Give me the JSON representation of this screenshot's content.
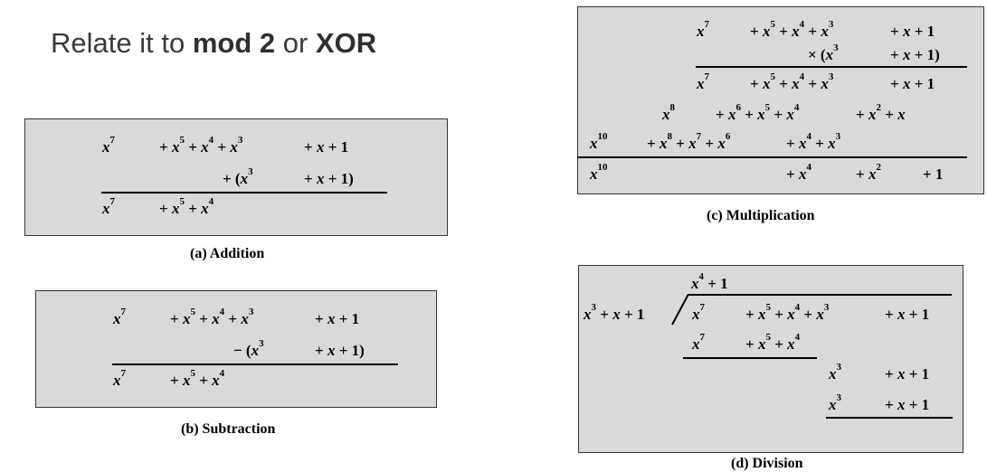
{
  "heading": {
    "prefix": "Relate it to ",
    "term1": "mod 2",
    "middle": " or ",
    "term2": "XOR"
  },
  "addition": {
    "caption": "(a) Addition",
    "row1": {
      "a": "x7",
      "b": "+ x5 + x4 + x3",
      "c": "+ x + 1"
    },
    "row2": {
      "b": "+ (x3",
      "c": "+ x + 1)"
    },
    "result": {
      "a": "x7",
      "b": "+ x5 + x4"
    }
  },
  "subtraction": {
    "caption": "(b) Subtraction",
    "row1": {
      "a": "x7",
      "b": "+ x5 + x4 + x3",
      "c": "+ x + 1"
    },
    "row2": {
      "b": "− (x3",
      "c": "+ x + 1)"
    },
    "result": {
      "a": "x7",
      "b": "+ x5 + x4"
    }
  },
  "multiplication": {
    "caption": "(c) Multiplication",
    "row1": {
      "a": "x7",
      "b": "+ x5 + x4 + x3",
      "c": "+ x + 1"
    },
    "row2": {
      "b": "× (x3",
      "c": "+ x + 1)"
    },
    "partial1": {
      "a": "x7",
      "b": "+ x5 + x4 + x3",
      "c": "+ x + 1"
    },
    "partial2": {
      "a": "x8",
      "b": "+ x6 + x5 + x4",
      "c": "+ x2 + x"
    },
    "partial3": {
      "a": "x10",
      "b": "+ x8 + x7 + x6",
      "c": "+ x4 + x3"
    },
    "result": {
      "a": "x10",
      "b": "+ x4",
      "c": "+ x2",
      "d": "+ 1"
    }
  },
  "division": {
    "caption": "(d) Division",
    "quotient": "x4 + 1",
    "divisor": "x3 + x + 1",
    "dividend": {
      "a": "x7",
      "b": "+ x5 + x4 + x3",
      "c": "+ x + 1"
    },
    "sub1": {
      "a": "x7",
      "b": "+ x5 + x4"
    },
    "rem1": {
      "a": "x3",
      "c": "+ x + 1"
    },
    "sub2": {
      "a": "x3",
      "c": "+ x + 1"
    }
  }
}
